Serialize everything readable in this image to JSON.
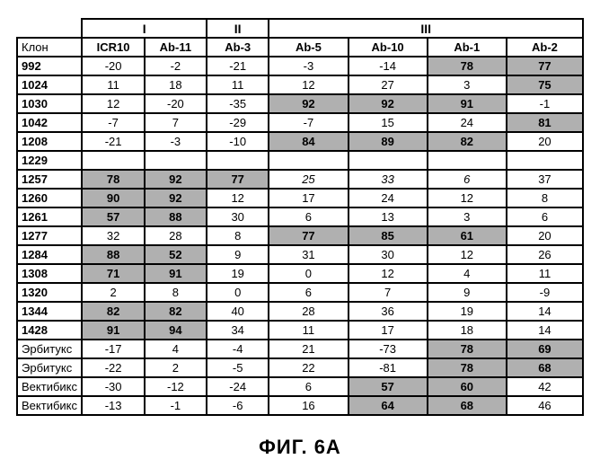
{
  "caption": "ФИГ. 6A",
  "groups": [
    "I",
    "II",
    "III"
  ],
  "row_header_label": "Клон",
  "columns": [
    "ICR10",
    "Ab-11",
    "Ab-3",
    "Ab-5",
    "Ab-10",
    "Ab-1",
    "Ab-2"
  ],
  "rows": [
    {
      "label": "992",
      "bold": true,
      "cells": [
        {
          "v": "-20"
        },
        {
          "v": "-2"
        },
        {
          "v": "-21"
        },
        {
          "v": "-3"
        },
        {
          "v": "-14"
        },
        {
          "v": "78",
          "hl": true
        },
        {
          "v": "77",
          "hl": true
        }
      ]
    },
    {
      "label": "1024",
      "bold": true,
      "cells": [
        {
          "v": "11"
        },
        {
          "v": "18"
        },
        {
          "v": "11"
        },
        {
          "v": "12"
        },
        {
          "v": "27"
        },
        {
          "v": "3"
        },
        {
          "v": "75",
          "hl": true
        }
      ]
    },
    {
      "label": "1030",
      "bold": true,
      "cells": [
        {
          "v": "12"
        },
        {
          "v": "-20"
        },
        {
          "v": "-35"
        },
        {
          "v": "92",
          "hl": true
        },
        {
          "v": "92",
          "hl": true
        },
        {
          "v": "91",
          "hl": true
        },
        {
          "v": "-1"
        }
      ]
    },
    {
      "label": "1042",
      "bold": true,
      "cells": [
        {
          "v": "-7"
        },
        {
          "v": "7"
        },
        {
          "v": "-29"
        },
        {
          "v": "-7"
        },
        {
          "v": "15"
        },
        {
          "v": "24"
        },
        {
          "v": "81",
          "hl": true
        }
      ]
    },
    {
      "label": "1208",
      "bold": true,
      "cells": [
        {
          "v": "-21"
        },
        {
          "v": "-3"
        },
        {
          "v": "-10"
        },
        {
          "v": "84",
          "hl": true
        },
        {
          "v": "89",
          "hl": true
        },
        {
          "v": "82",
          "hl": true
        },
        {
          "v": "20"
        }
      ]
    },
    {
      "label": "1229",
      "bold": true,
      "cells": [
        {
          "v": ""
        },
        {
          "v": ""
        },
        {
          "v": ""
        },
        {
          "v": ""
        },
        {
          "v": ""
        },
        {
          "v": ""
        },
        {
          "v": ""
        }
      ]
    },
    {
      "label": "1257",
      "bold": true,
      "cells": [
        {
          "v": "78",
          "hl": true
        },
        {
          "v": "92",
          "hl": true
        },
        {
          "v": "77",
          "hl": true
        },
        {
          "v": "25",
          "it": true
        },
        {
          "v": "33",
          "it": true
        },
        {
          "v": "6",
          "it": true
        },
        {
          "v": "37"
        }
      ]
    },
    {
      "label": "1260",
      "bold": true,
      "cells": [
        {
          "v": "90",
          "hl": true
        },
        {
          "v": "92",
          "hl": true
        },
        {
          "v": "12"
        },
        {
          "v": "17"
        },
        {
          "v": "24"
        },
        {
          "v": "12"
        },
        {
          "v": "8"
        }
      ]
    },
    {
      "label": "1261",
      "bold": true,
      "cells": [
        {
          "v": "57",
          "hl": true
        },
        {
          "v": "88",
          "hl": true
        },
        {
          "v": "30"
        },
        {
          "v": "6"
        },
        {
          "v": "13"
        },
        {
          "v": "3"
        },
        {
          "v": "6"
        }
      ]
    },
    {
      "label": "1277",
      "bold": true,
      "cells": [
        {
          "v": "32"
        },
        {
          "v": "28"
        },
        {
          "v": "8"
        },
        {
          "v": "77",
          "hl": true
        },
        {
          "v": "85",
          "hl": true
        },
        {
          "v": "61",
          "hl": true
        },
        {
          "v": "20"
        }
      ]
    },
    {
      "label": "1284",
      "bold": true,
      "cells": [
        {
          "v": "88",
          "hl": true
        },
        {
          "v": "52",
          "hl": true
        },
        {
          "v": "9"
        },
        {
          "v": "31"
        },
        {
          "v": "30"
        },
        {
          "v": "12"
        },
        {
          "v": "26"
        }
      ]
    },
    {
      "label": "1308",
      "bold": true,
      "cells": [
        {
          "v": "71",
          "hl": true
        },
        {
          "v": "91",
          "hl": true
        },
        {
          "v": "19"
        },
        {
          "v": "0"
        },
        {
          "v": "12"
        },
        {
          "v": "4"
        },
        {
          "v": "11"
        }
      ]
    },
    {
      "label": "1320",
      "bold": true,
      "cells": [
        {
          "v": "2"
        },
        {
          "v": "8"
        },
        {
          "v": "0"
        },
        {
          "v": "6"
        },
        {
          "v": "7"
        },
        {
          "v": "9"
        },
        {
          "v": "-9"
        }
      ]
    },
    {
      "label": "1344",
      "bold": true,
      "cells": [
        {
          "v": "82",
          "hl": true
        },
        {
          "v": "82",
          "hl": true
        },
        {
          "v": "40"
        },
        {
          "v": "28"
        },
        {
          "v": "36"
        },
        {
          "v": "19"
        },
        {
          "v": "14"
        }
      ]
    },
    {
      "label": "1428",
      "bold": true,
      "cells": [
        {
          "v": "91",
          "hl": true
        },
        {
          "v": "94",
          "hl": true
        },
        {
          "v": "34"
        },
        {
          "v": "11"
        },
        {
          "v": "17"
        },
        {
          "v": "18"
        },
        {
          "v": "14"
        }
      ]
    },
    {
      "label": "Эрбитукс",
      "bold": false,
      "cells": [
        {
          "v": "-17"
        },
        {
          "v": "4"
        },
        {
          "v": "-4"
        },
        {
          "v": "21"
        },
        {
          "v": "-73"
        },
        {
          "v": "78",
          "hl": true
        },
        {
          "v": "69",
          "hl": true
        }
      ]
    },
    {
      "label": "Эрбитукс",
      "bold": false,
      "cells": [
        {
          "v": "-22"
        },
        {
          "v": "2"
        },
        {
          "v": "-5"
        },
        {
          "v": "22"
        },
        {
          "v": "-81"
        },
        {
          "v": "78",
          "hl": true
        },
        {
          "v": "68",
          "hl": true
        }
      ]
    },
    {
      "label": "Вектибикс",
      "bold": false,
      "cells": [
        {
          "v": "-30"
        },
        {
          "v": "-12"
        },
        {
          "v": "-24"
        },
        {
          "v": "6"
        },
        {
          "v": "57",
          "hl": true
        },
        {
          "v": "60",
          "hl": true
        },
        {
          "v": "42"
        }
      ]
    },
    {
      "label": "Вектибикс",
      "bold": false,
      "cells": [
        {
          "v": "-13"
        },
        {
          "v": "-1"
        },
        {
          "v": "-6"
        },
        {
          "v": "16"
        },
        {
          "v": "64",
          "hl": true
        },
        {
          "v": "68",
          "hl": true
        },
        {
          "v": "46"
        }
      ]
    }
  ],
  "colors": {
    "border": "#000000",
    "highlight": "#b0b0b0",
    "background": "#ffffff",
    "text": "#000000"
  }
}
